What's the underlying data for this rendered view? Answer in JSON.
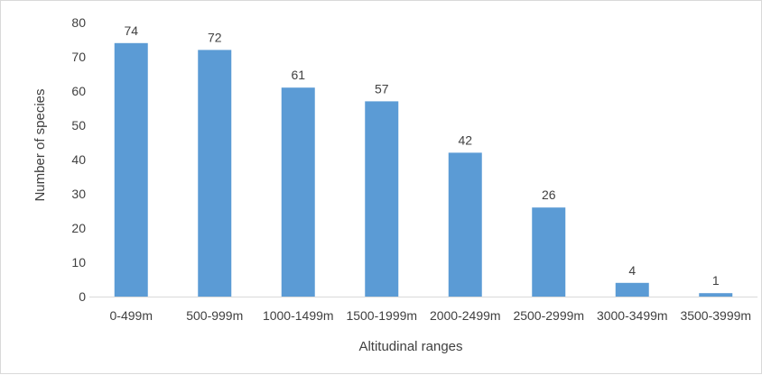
{
  "chart_data": {
    "type": "bar",
    "title": "",
    "xlabel": "Altitudinal ranges",
    "ylabel": "Number of species",
    "categories": [
      "0-499m",
      "500-999m",
      "1000-1499m",
      "1500-1999m",
      "2000-2499m",
      "2500-2999m",
      "3000-3499m",
      "3500-3999m"
    ],
    "series": [
      {
        "values": [
          74,
          72,
          61,
          57,
          42,
          26,
          4,
          1
        ]
      }
    ],
    "ylim": [
      0,
      80
    ],
    "yticks": [
      0,
      10,
      20,
      30,
      40,
      50,
      60,
      70,
      80
    ],
    "data_labels": true,
    "grid": false,
    "legend": "none",
    "bar_color": "#5b9bd5",
    "axis_color": "#d9d9d9",
    "text_color": "#404040"
  }
}
